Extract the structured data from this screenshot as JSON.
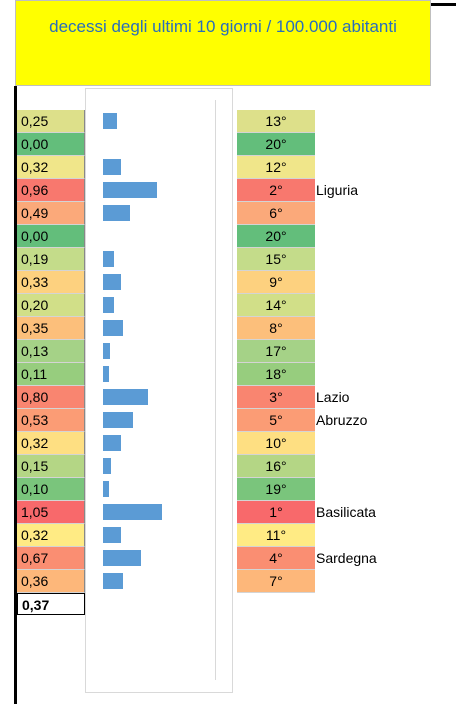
{
  "title": "decessi degli ultimi 10 giorni / 100.000 abitanti",
  "bar_color": "#5b9bd5",
  "xlim": [
    0,
    2
  ],
  "rows": [
    {
      "value": 0.25,
      "value_label": "0,25",
      "rank": "13°",
      "region": null,
      "color": "#dde08a"
    },
    {
      "value": 0.0,
      "value_label": "0,00",
      "rank": "20°",
      "region": null,
      "color": "#63be7b"
    },
    {
      "value": 0.32,
      "value_label": "0,32",
      "rank": "12°",
      "region": null,
      "color": "#f0e68a"
    },
    {
      "value": 0.96,
      "value_label": "0,96",
      "rank": "2°",
      "region": "Liguria",
      "color": "#f8786e"
    },
    {
      "value": 0.49,
      "value_label": "0,49",
      "rank": "6°",
      "region": null,
      "color": "#fba97a"
    },
    {
      "value": 0.0,
      "value_label": "0,00",
      "rank": "20°",
      "region": null,
      "color": "#63be7b"
    },
    {
      "value": 0.19,
      "value_label": "0,19",
      "rank": "15°",
      "region": null,
      "color": "#c4dc8a"
    },
    {
      "value": 0.33,
      "value_label": "0,33",
      "rank": "9°",
      "region": null,
      "color": "#fdd17f"
    },
    {
      "value": 0.2,
      "value_label": "0,20",
      "rank": "14°",
      "region": null,
      "color": "#d1df88"
    },
    {
      "value": 0.35,
      "value_label": "0,35",
      "rank": "8°",
      "region": null,
      "color": "#fcbf7b"
    },
    {
      "value": 0.13,
      "value_label": "0,13",
      "rank": "17°",
      "region": null,
      "color": "#a5d287"
    },
    {
      "value": 0.11,
      "value_label": "0,11",
      "rank": "18°",
      "region": null,
      "color": "#97cd7e"
    },
    {
      "value": 0.8,
      "value_label": "0,80",
      "rank": "3°",
      "region": "Lazio",
      "color": "#f98570"
    },
    {
      "value": 0.53,
      "value_label": "0,53",
      "rank": "5°",
      "region": "Abruzzo",
      "color": "#fb9c75"
    },
    {
      "value": 0.32,
      "value_label": "0,32",
      "rank": "10°",
      "region": null,
      "color": "#fedf82"
    },
    {
      "value": 0.15,
      "value_label": "0,15",
      "rank": "16°",
      "region": null,
      "color": "#b4d685"
    },
    {
      "value": 0.1,
      "value_label": "0,10",
      "rank": "19°",
      "region": null,
      "color": "#7ac57c"
    },
    {
      "value": 1.05,
      "value_label": "1,05",
      "rank": "1°",
      "region": "Basilicata",
      "color": "#f8696b"
    },
    {
      "value": 0.32,
      "value_label": "0,32",
      "rank": "11°",
      "region": null,
      "color": "#ffeb84"
    },
    {
      "value": 0.67,
      "value_label": "0,67",
      "rank": "4°",
      "region": "Sardegna",
      "color": "#fa8e72"
    },
    {
      "value": 0.36,
      "value_label": "0,36",
      "rank": "7°",
      "region": null,
      "color": "#fdb77a"
    }
  ],
  "total": "0,37"
}
